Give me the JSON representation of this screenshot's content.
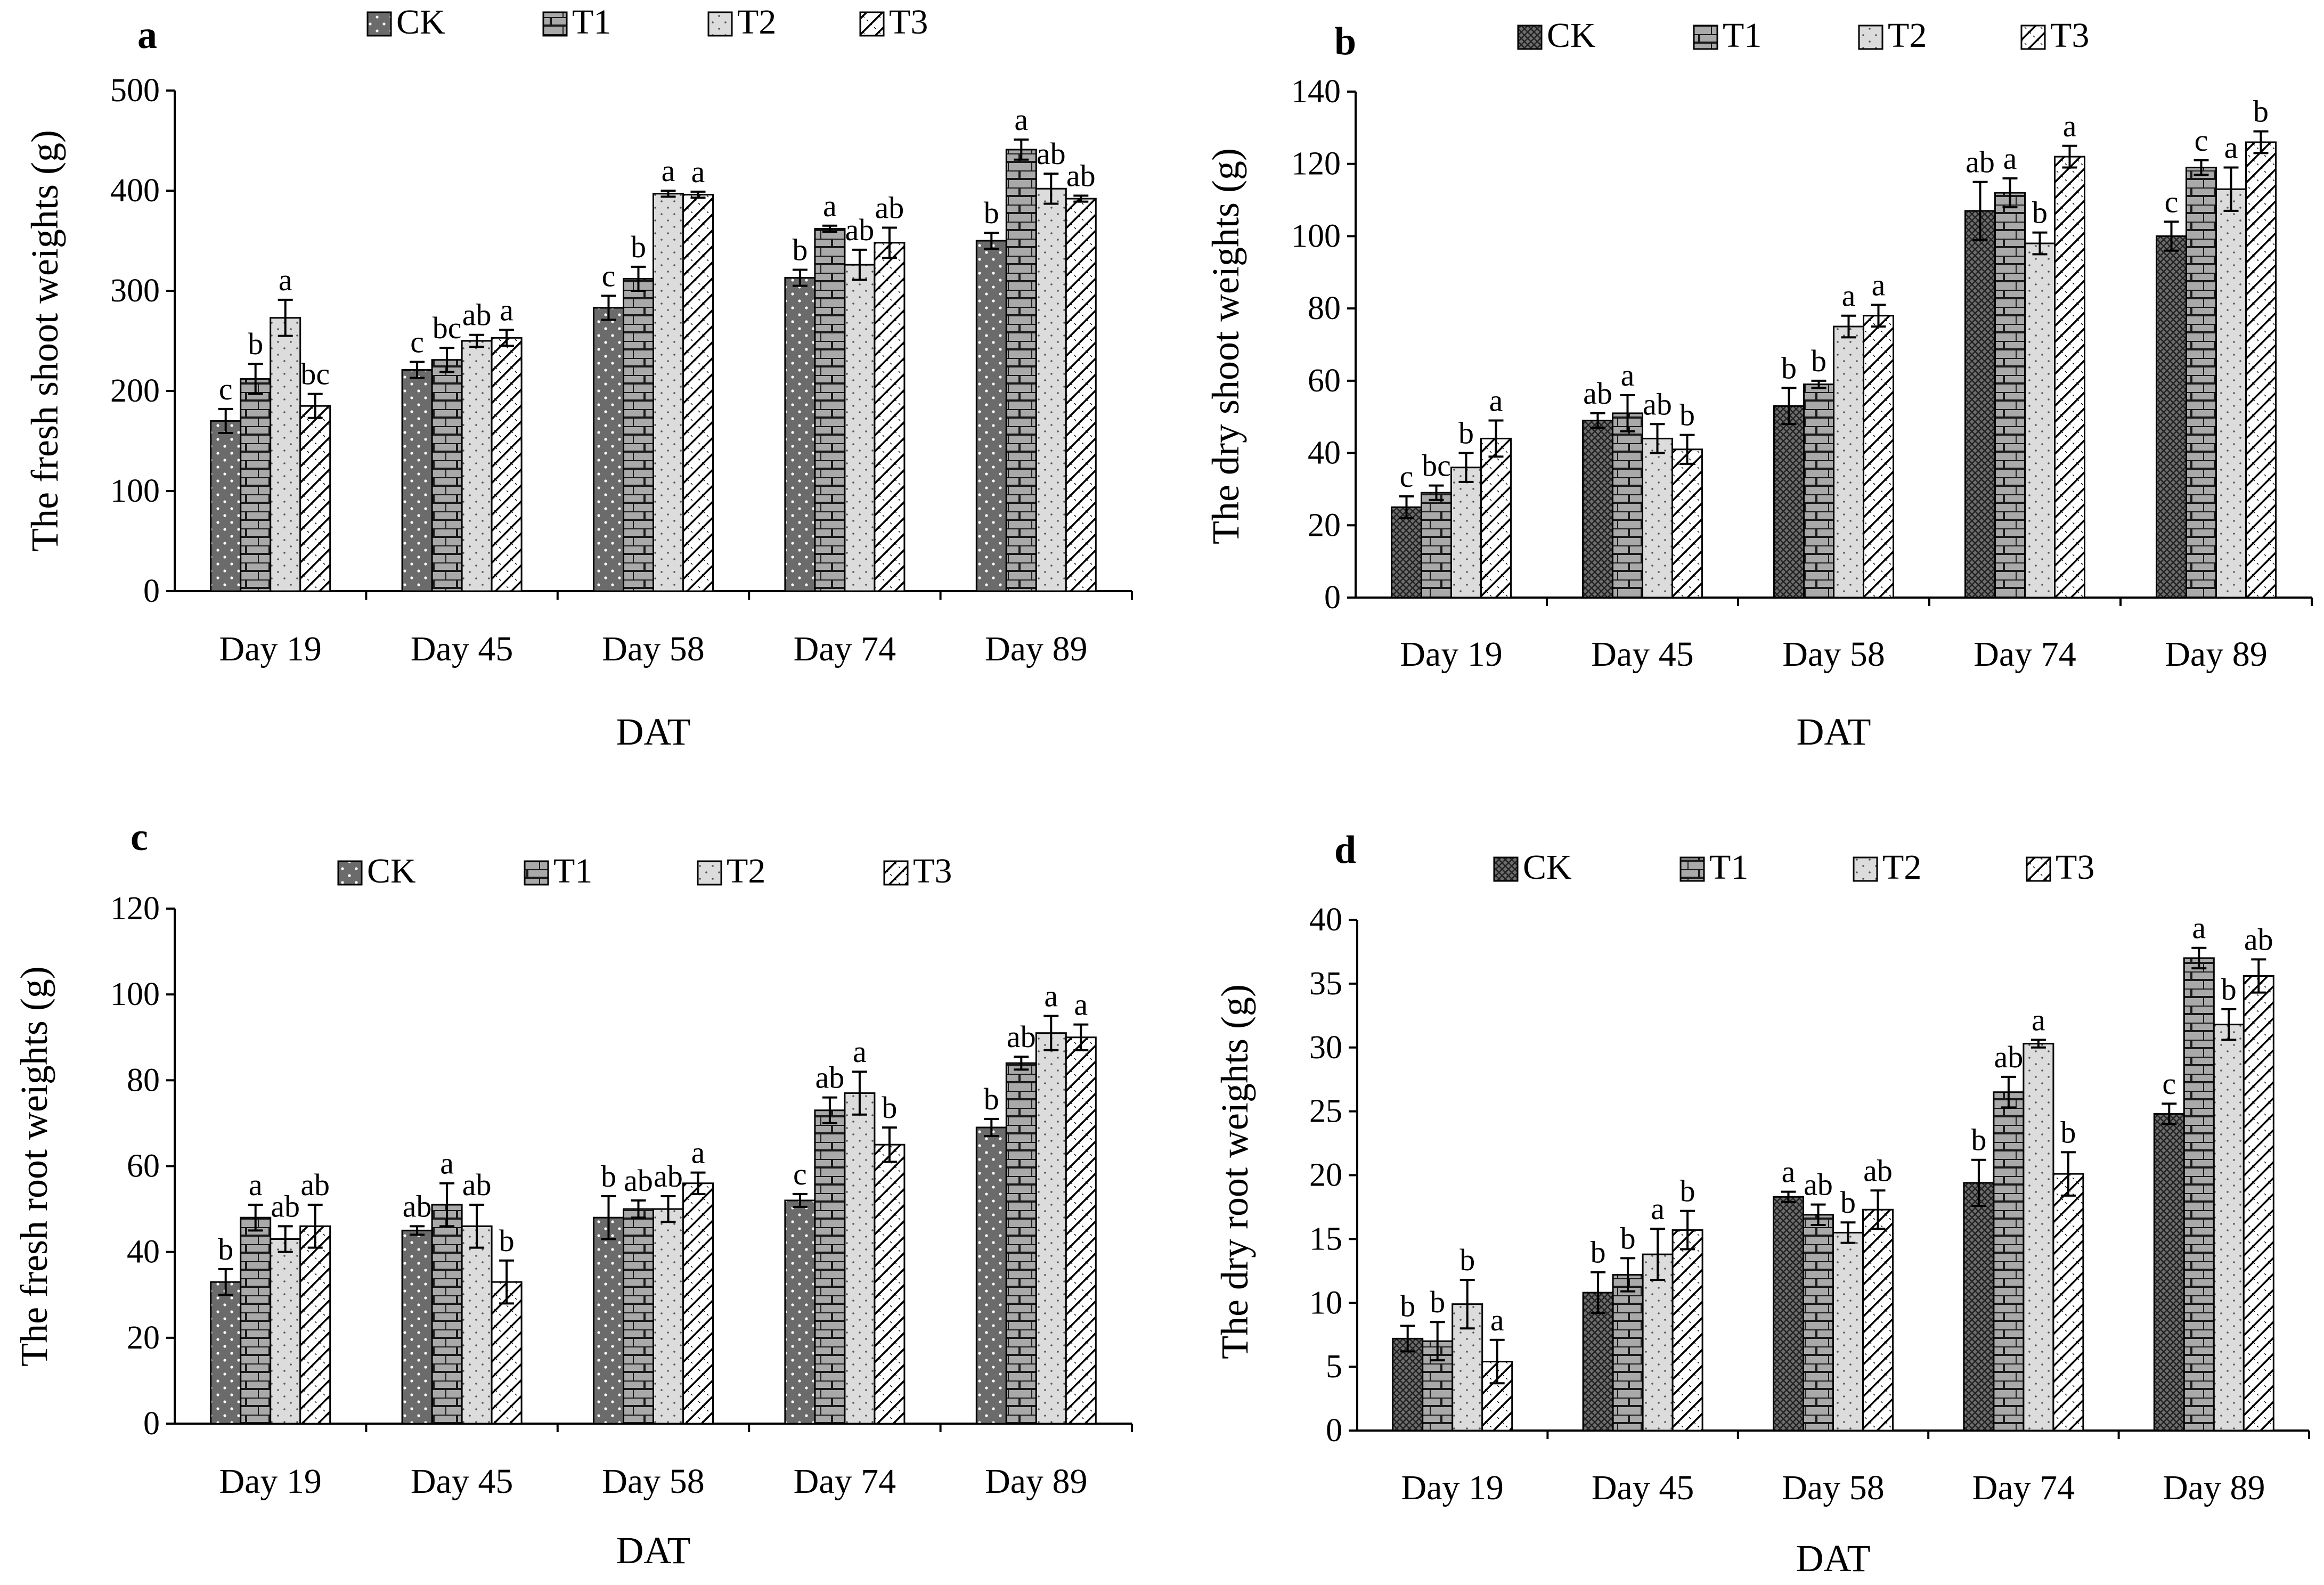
{
  "figure": {
    "colors": {
      "CK": "#6b6b6b",
      "T1": "#a9a9a9",
      "T2": "#dcdcdc",
      "T3": "#ffffff",
      "axis": "#000000"
    }
  },
  "chart_data": [
    {
      "panel": "a",
      "type": "bar",
      "ylabel": "The fresh shoot weights (g)",
      "xlabel": "DAT",
      "ylim": [
        0,
        500
      ],
      "yticks": [
        0,
        100,
        200,
        300,
        400,
        500
      ],
      "categories": [
        "Day 19",
        "Day 45",
        "Day 58",
        "Day 74",
        "Day 89"
      ],
      "legend": [
        "CK",
        "T1",
        "T2",
        "T3"
      ],
      "series": [
        {
          "name": "CK",
          "values": [
            170,
            221,
            283,
            313,
            350
          ],
          "errors": [
            12,
            8,
            12,
            8,
            8
          ],
          "labels": [
            "c",
            "c",
            "c",
            "b",
            "b"
          ]
        },
        {
          "name": "T1",
          "values": [
            212,
            231,
            312,
            362,
            441
          ],
          "errors": [
            15,
            12,
            12,
            3,
            10
          ],
          "labels": [
            "b",
            "bc",
            "b",
            "a",
            "a"
          ]
        },
        {
          "name": "T2",
          "values": [
            273,
            250,
            397,
            326,
            402
          ],
          "errors": [
            18,
            6,
            3,
            15,
            15
          ],
          "labels": [
            "a",
            "ab",
            "a",
            "ab",
            "ab"
          ]
        },
        {
          "name": "T3",
          "values": [
            185,
            253,
            396,
            348,
            392
          ],
          "errors": [
            12,
            8,
            3,
            15,
            3
          ],
          "labels": [
            "bc",
            "a",
            "a",
            "ab",
            "ab"
          ]
        }
      ]
    },
    {
      "panel": "b",
      "type": "bar",
      "ylabel": "The dry shoot weights (g)",
      "xlabel": "DAT",
      "ylim": [
        0,
        140
      ],
      "yticks": [
        0,
        20,
        40,
        60,
        80,
        100,
        120,
        140
      ],
      "categories": [
        "Day 19",
        "Day 45",
        "Day 58",
        "Day 74",
        "Day 89"
      ],
      "legend": [
        "CK",
        "T1",
        "T2",
        "T3"
      ],
      "series": [
        {
          "name": "CK",
          "values": [
            25,
            49,
            53,
            107,
            100
          ],
          "errors": [
            3,
            2,
            5,
            8,
            4
          ],
          "labels": [
            "c",
            "ab",
            "b",
            "ab",
            "c"
          ]
        },
        {
          "name": "T1",
          "values": [
            29,
            51,
            59,
            112,
            119
          ],
          "errors": [
            2,
            5,
            1,
            4,
            2
          ],
          "labels": [
            "bc",
            "a",
            "b",
            "a",
            "c"
          ]
        },
        {
          "name": "T2",
          "values": [
            36,
            44,
            75,
            98,
            113
          ],
          "errors": [
            4,
            4,
            3,
            3,
            6
          ],
          "labels": [
            "b",
            "ab",
            "a",
            "b",
            "a"
          ]
        },
        {
          "name": "T3",
          "values": [
            44,
            41,
            78,
            122,
            126
          ],
          "errors": [
            5,
            4,
            3,
            3,
            3
          ],
          "labels": [
            "a",
            "b",
            "a",
            "a",
            "b"
          ]
        }
      ]
    },
    {
      "panel": "c",
      "type": "bar",
      "ylabel": "The fresh root weights (g)",
      "xlabel": "DAT",
      "ylim": [
        0,
        120
      ],
      "yticks": [
        0,
        20,
        40,
        60,
        80,
        100,
        120
      ],
      "categories": [
        "Day 19",
        "Day 45",
        "Day 58",
        "Day 74",
        "Day 89"
      ],
      "legend": [
        "CK",
        "T1",
        "T2",
        "T3"
      ],
      "series": [
        {
          "name": "CK",
          "values": [
            33,
            45,
            48,
            52,
            69
          ],
          "errors": [
            3,
            1,
            5,
            1.5,
            2
          ],
          "labels": [
            "b",
            "ab",
            "b",
            "c",
            "b"
          ]
        },
        {
          "name": "T1",
          "values": [
            48,
            51,
            50,
            73,
            84
          ],
          "errors": [
            3,
            5,
            2,
            3,
            1.5
          ],
          "labels": [
            "a",
            "a",
            "ab",
            "ab",
            "ab"
          ]
        },
        {
          "name": "T2",
          "values": [
            43,
            46,
            50,
            77,
            91
          ],
          "errors": [
            3,
            5,
            3,
            5,
            4
          ],
          "labels": [
            "ab",
            "ab",
            "ab",
            "a",
            "a"
          ]
        },
        {
          "name": "T3",
          "values": [
            46,
            33,
            56,
            65,
            90
          ],
          "errors": [
            5,
            5,
            2.5,
            4,
            3
          ],
          "labels": [
            "ab",
            "b",
            "a",
            "b",
            "a"
          ]
        }
      ]
    },
    {
      "panel": "d",
      "type": "bar",
      "ylabel": "The dry root weights (g)",
      "xlabel": "DAT",
      "ylim": [
        0,
        40
      ],
      "yticks": [
        0,
        5,
        10,
        15,
        20,
        25,
        30,
        35,
        40
      ],
      "categories": [
        "Day 19",
        "Day 45",
        "Day 58",
        "Day 74",
        "Day 89"
      ],
      "legend": [
        "CK",
        "T1",
        "T2",
        "T3"
      ],
      "series": [
        {
          "name": "CK",
          "values": [
            7.2,
            10.8,
            18.3,
            19.4,
            24.8
          ],
          "errors": [
            1.0,
            1.6,
            0.4,
            1.8,
            0.8
          ],
          "labels": [
            "b",
            "b",
            "a",
            "b",
            "c"
          ]
        },
        {
          "name": "T1",
          "values": [
            7.0,
            12.2,
            16.9,
            26.5,
            37.0
          ],
          "errors": [
            1.5,
            1.3,
            0.8,
            1.2,
            0.8
          ],
          "labels": [
            "b",
            "b",
            "ab",
            "ab",
            "a"
          ]
        },
        {
          "name": "T2",
          "values": [
            9.9,
            13.8,
            15.5,
            30.3,
            31.8
          ],
          "errors": [
            1.9,
            2.0,
            0.8,
            0.3,
            1.2
          ],
          "labels": [
            "b",
            "a",
            "b",
            "a",
            "b"
          ]
        },
        {
          "name": "T3",
          "values": [
            5.4,
            15.7,
            17.3,
            20.1,
            35.6
          ],
          "errors": [
            1.7,
            1.5,
            1.5,
            1.7,
            1.3
          ],
          "labels": [
            "a",
            "b",
            "ab",
            "b",
            "ab"
          ]
        }
      ]
    }
  ]
}
